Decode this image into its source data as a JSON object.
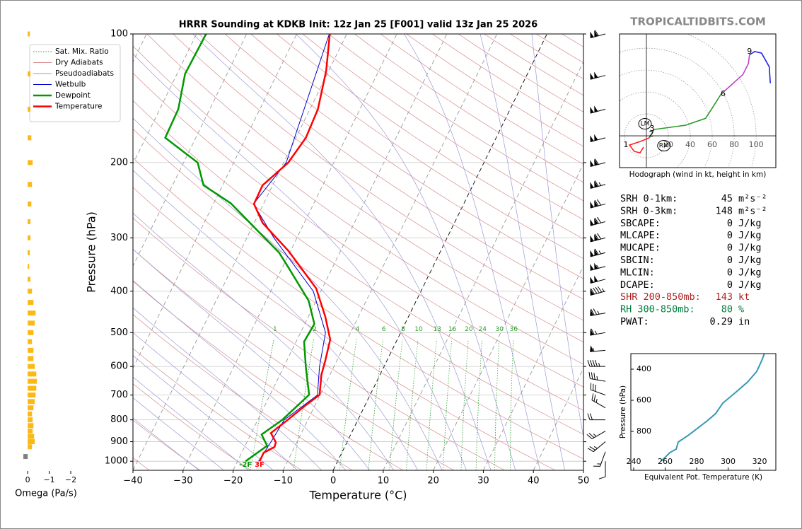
{
  "watermark": "TROPICALTIDBITS.COM",
  "chart_data": [
    {
      "type": "skewt",
      "title": "HRRR Sounding at KDKB Init: 12z Jan 25 [F001] valid 13z Jan 25 2026",
      "xlabel": "Temperature (°C)",
      "ylabel": "Pressure (hPa)",
      "xlim": [
        -40,
        50
      ],
      "ylim": [
        1050,
        100
      ],
      "log_y": true,
      "xticks": [
        {
          "value": -40,
          "label": "−40"
        },
        {
          "value": -30,
          "label": "−30"
        },
        {
          "value": -20,
          "label": "−20"
        },
        {
          "value": -10,
          "label": "−10"
        },
        0,
        10,
        20,
        30,
        40,
        50
      ],
      "yticks": [
        100,
        200,
        300,
        400,
        500,
        600,
        700,
        800,
        900,
        1000
      ],
      "grid": true,
      "legend": "upper left",
      "reference_lines": [
        {
          "name": "Sat. Mix. Ratio",
          "color": "#2ca02c",
          "style": "dotted"
        },
        {
          "name": "Dry Adiabats",
          "color": "#d98c8c",
          "style": "solid"
        },
        {
          "name": "Pseudoadiabats",
          "color": "#9a9ad6",
          "style": "solid"
        }
      ],
      "mixing_ratios": [
        1,
        2,
        4,
        6,
        8,
        10,
        13,
        16,
        20,
        24,
        30,
        36
      ],
      "series": [
        {
          "name": "Wetbulb",
          "color": "#0000cc",
          "linewidth": 1,
          "pressure": [
            1000,
            900,
            800,
            700,
            600,
            500,
            400,
            300,
            250,
            200,
            100
          ],
          "values": [
            -15.8,
            -15.2,
            -14.7,
            -10.5,
            -12.9,
            -15.0,
            -21.5,
            -34.6,
            -42.0,
            -39.5,
            -43.5
          ]
        },
        {
          "name": "Dewpoint",
          "color": "#009900",
          "linewidth": 2.5,
          "surface_label": "-2F",
          "pressure": [
            1000,
            920,
            866,
            800,
            699,
            604,
            525,
            477,
            421,
            352,
            325,
            249,
            226,
            200,
            175,
            150,
            124,
            100
          ],
          "values": [
            -18.4,
            -15.6,
            -17.8,
            -15.1,
            -12.2,
            -15.5,
            -18.4,
            -18.1,
            -21.5,
            -28.8,
            -32.1,
            -46.6,
            -53.8,
            -57.2,
            -66.1,
            -66.3,
            -68.4,
            -68.1
          ]
        },
        {
          "name": "Temperature",
          "color": "#ff0000",
          "linewidth": 2.5,
          "surface_label": "3F",
          "pressure": [
            1000,
            955,
            926,
            903,
            859,
            805,
            746,
            699,
            628,
            582,
            519,
            459,
            394,
            322,
            277,
            250,
            226,
            200,
            175,
            150,
            122,
            100
          ],
          "values": [
            -15.6,
            -15.6,
            -14.0,
            -14.2,
            -16.1,
            -14.2,
            -12.1,
            -10.1,
            -11.7,
            -12.3,
            -13.4,
            -16.6,
            -21.2,
            -30.4,
            -38.3,
            -41.9,
            -42.0,
            -39.1,
            -38.0,
            -38.4,
            -40.5,
            -43.4
          ]
        }
      ],
      "wind": {
        "pressure": [
          100,
          125,
          150,
          175,
          200,
          225,
          250,
          275,
          300,
          325,
          350,
          375,
          400,
          450,
          500,
          550,
          600,
          650,
          700,
          750,
          800,
          850,
          900,
          950,
          1000
        ],
        "speed": [
          110,
          100,
          100,
          100,
          110,
          115,
          120,
          120,
          120,
          115,
          105,
          100,
          95,
          75,
          65,
          55,
          45,
          35,
          30,
          25,
          20,
          25,
          25,
          15,
          10
        ],
        "direction": [
          255,
          255,
          255,
          255,
          255,
          255,
          255,
          255,
          255,
          255,
          255,
          255,
          255,
          260,
          260,
          265,
          270,
          280,
          290,
          300,
          270,
          240,
          230,
          200,
          180
        ]
      }
    },
    {
      "type": "bar",
      "orientation": "horizontal",
      "xlabel": "Omega (Pa/s)",
      "xlim": [
        0.3,
        -2
      ],
      "xticks": [
        0,
        {
          "value": -1,
          "label": "−1"
        },
        {
          "value": -2,
          "label": "−2"
        }
      ],
      "ylim": [
        1050,
        100
      ],
      "log_y": true,
      "colors": {
        "negative": "#fbb917",
        "positive": "#7f7f7f"
      },
      "pressure": [
        100,
        124,
        150,
        175,
        200,
        225,
        250,
        275,
        300,
        325,
        350,
        375,
        400,
        425,
        450,
        475,
        500,
        525,
        550,
        575,
        600,
        625,
        650,
        675,
        700,
        725,
        750,
        775,
        800,
        825,
        850,
        875,
        900,
        925,
        975
      ],
      "values": [
        -0.1,
        -0.13,
        -0.13,
        -0.17,
        -0.23,
        -0.2,
        -0.17,
        -0.13,
        -0.13,
        -0.1,
        -0.07,
        -0.13,
        -0.2,
        -0.27,
        -0.37,
        -0.33,
        -0.27,
        -0.2,
        -0.27,
        -0.27,
        -0.33,
        -0.4,
        -0.43,
        -0.4,
        -0.37,
        -0.33,
        -0.27,
        -0.2,
        -0.23,
        -0.27,
        -0.23,
        -0.3,
        -0.33,
        -0.2,
        0.2
      ]
    },
    {
      "type": "hodograph",
      "title": "Hodograph (wind in kt, height in km)",
      "xlim": [
        -24.5,
        118
      ],
      "ylim": [
        -29,
        93
      ],
      "xticks": [
        20,
        40,
        60,
        80,
        100
      ],
      "series": [
        {
          "color": "#ff2020",
          "x": [
            -2.6,
            -5.8,
            -11,
            -15.5,
            -5.8,
            2.6
          ],
          "values": [
            -10.3,
            -15.5,
            -14.2,
            -8.4,
            -5.2,
            -1.9
          ]
        },
        {
          "color": "#2a9a2a",
          "x": [
            2.6,
            7.1,
            36,
            54,
            63,
            68
          ],
          "values": [
            -1.9,
            5.8,
            9.7,
            16,
            30,
            38
          ]
        },
        {
          "color": "#c040c0",
          "x": [
            68,
            88,
            93,
            94
          ],
          "values": [
            38,
            56,
            66,
            74
          ]
        },
        {
          "color": "#2020e0",
          "x": [
            94,
            98.7,
            105,
            112,
            113
          ],
          "values": [
            74,
            77,
            75.5,
            63,
            48
          ]
        }
      ],
      "height_labels": [
        {
          "label": "1",
          "x": -18.7,
          "y": -8.4
        },
        {
          "label": "2",
          "x": 4.5,
          "y": 1.3
        },
        {
          "label": "3",
          "x": 5.2,
          "y": 6.5
        },
        {
          "label": "6",
          "x": 70,
          "y": 38
        },
        {
          "label": "9",
          "x": 94,
          "y": 77
        }
      ],
      "storm_motion": [
        {
          "label": "LM",
          "x": -1.3,
          "y": 11
        },
        {
          "label": "RM",
          "x": 16,
          "y": -9
        }
      ]
    },
    {
      "type": "line",
      "xlabel": "Equivalent Pot. Temperature (K)",
      "ylabel": "Pressure (hPa)",
      "xlim": [
        238.2,
        330.3
      ],
      "ylim": [
        1050,
        300
      ],
      "log_y": false,
      "xticks": [
        240,
        260,
        280,
        300,
        320
      ],
      "yticks": [
        400,
        600,
        800
      ],
      "series": [
        {
          "color": "#3399b3",
          "pressure": [
            991,
            936,
            914,
            868,
            823,
            732,
            686,
            618,
            550,
            482,
            414,
            345,
            300
          ],
          "values": [
            257.5,
            263,
            267,
            268.3,
            275,
            286.7,
            292,
            296.6,
            304.7,
            312.4,
            318.2,
            321.3,
            323
          ]
        }
      ]
    }
  ],
  "indices": [
    {
      "label": "SRH 0-1km:",
      "value": 45,
      "unit": "m²s⁻²",
      "color": "#000000"
    },
    {
      "label": "SRH 0-3km:",
      "value": 148,
      "unit": "m²s⁻²",
      "color": "#000000"
    },
    {
      "label": "SBCAPE:",
      "value": 0,
      "unit": "J/kg",
      "color": "#000000"
    },
    {
      "label": "MLCAPE:",
      "value": 0,
      "unit": "J/kg",
      "color": "#000000"
    },
    {
      "label": "MUCAPE:",
      "value": 0,
      "unit": "J/kg",
      "color": "#000000"
    },
    {
      "label": "SBCIN:",
      "value": 0,
      "unit": "J/kg",
      "color": "#000000"
    },
    {
      "label": "MLCIN:",
      "value": 0,
      "unit": "J/kg",
      "color": "#000000"
    },
    {
      "label": "DCAPE:",
      "value": 0,
      "unit": "J/kg",
      "color": "#000000"
    },
    {
      "label": "SHR 200-850mb:",
      "value": 143,
      "unit": "kt",
      "color": "#b22222"
    },
    {
      "label": "RH 300-850mb:",
      "value": 80,
      "unit": "%",
      "color": "#008040"
    },
    {
      "label": "PWAT:",
      "value": 0.29,
      "unit": "in",
      "color": "#000000"
    }
  ]
}
